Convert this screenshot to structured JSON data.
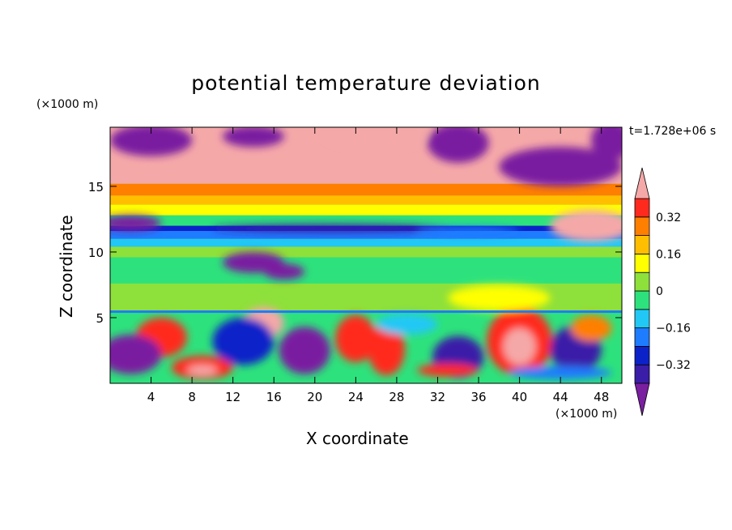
{
  "chart_data": {
    "type": "heatmap",
    "title": "potential temperature deviation",
    "xlabel": "X coordinate",
    "ylabel": "Z coordinate",
    "x_units": "(×1000 m)",
    "y_units": "(×1000 m)",
    "time_label": "t=1.728e+06 s",
    "xlim": [
      0,
      50
    ],
    "ylim": [
      0,
      19.5
    ],
    "x_ticks": [
      4,
      8,
      12,
      16,
      20,
      24,
      28,
      32,
      36,
      40,
      44,
      48
    ],
    "y_ticks": [
      5,
      10,
      15
    ],
    "colorbar": {
      "levels": [
        -0.4,
        -0.32,
        -0.24,
        -0.16,
        -0.08,
        0,
        0.08,
        0.16,
        0.24,
        0.32,
        0.4
      ],
      "labels": [
        "0.32",
        "0.16",
        "0",
        "−0.16",
        "−0.32"
      ],
      "label_values": [
        0.32,
        0.16,
        0,
        -0.16,
        -0.32
      ],
      "colors_bottom_to_top": [
        "#7a1fa0",
        "#3a1ea8",
        "#0c22c9",
        "#1e7cff",
        "#21c8f5",
        "#2de27c",
        "#8ee03a",
        "#ffff00",
        "#ffbf00",
        "#ff7f00",
        "#ff2a1e",
        "#f5a8a8"
      ],
      "extend": "both"
    },
    "grid": false,
    "legend": "colorbar-right"
  }
}
